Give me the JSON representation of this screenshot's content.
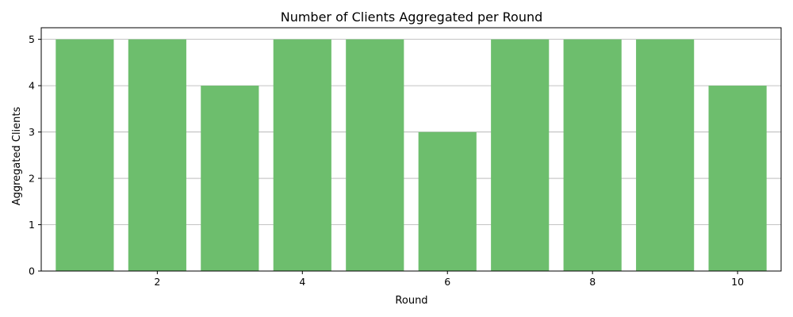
{
  "chart_data": {
    "type": "bar",
    "title": "Number of Clients Aggregated per Round",
    "xlabel": "Round",
    "ylabel": "Aggregated Clients",
    "x": [
      1,
      2,
      3,
      4,
      5,
      6,
      7,
      8,
      9,
      10
    ],
    "values": [
      5,
      5,
      4,
      5,
      5,
      3,
      5,
      5,
      5,
      4
    ],
    "xticks": [
      2,
      4,
      6,
      8,
      10
    ],
    "yticks": [
      0,
      1,
      2,
      3,
      4,
      5
    ],
    "xlim": [
      0.4,
      10.6
    ],
    "ylim": [
      0,
      5.25
    ],
    "grid": "y-axis",
    "bar_color": "#6dbe6d",
    "grid_color": "#b0b0b0"
  }
}
